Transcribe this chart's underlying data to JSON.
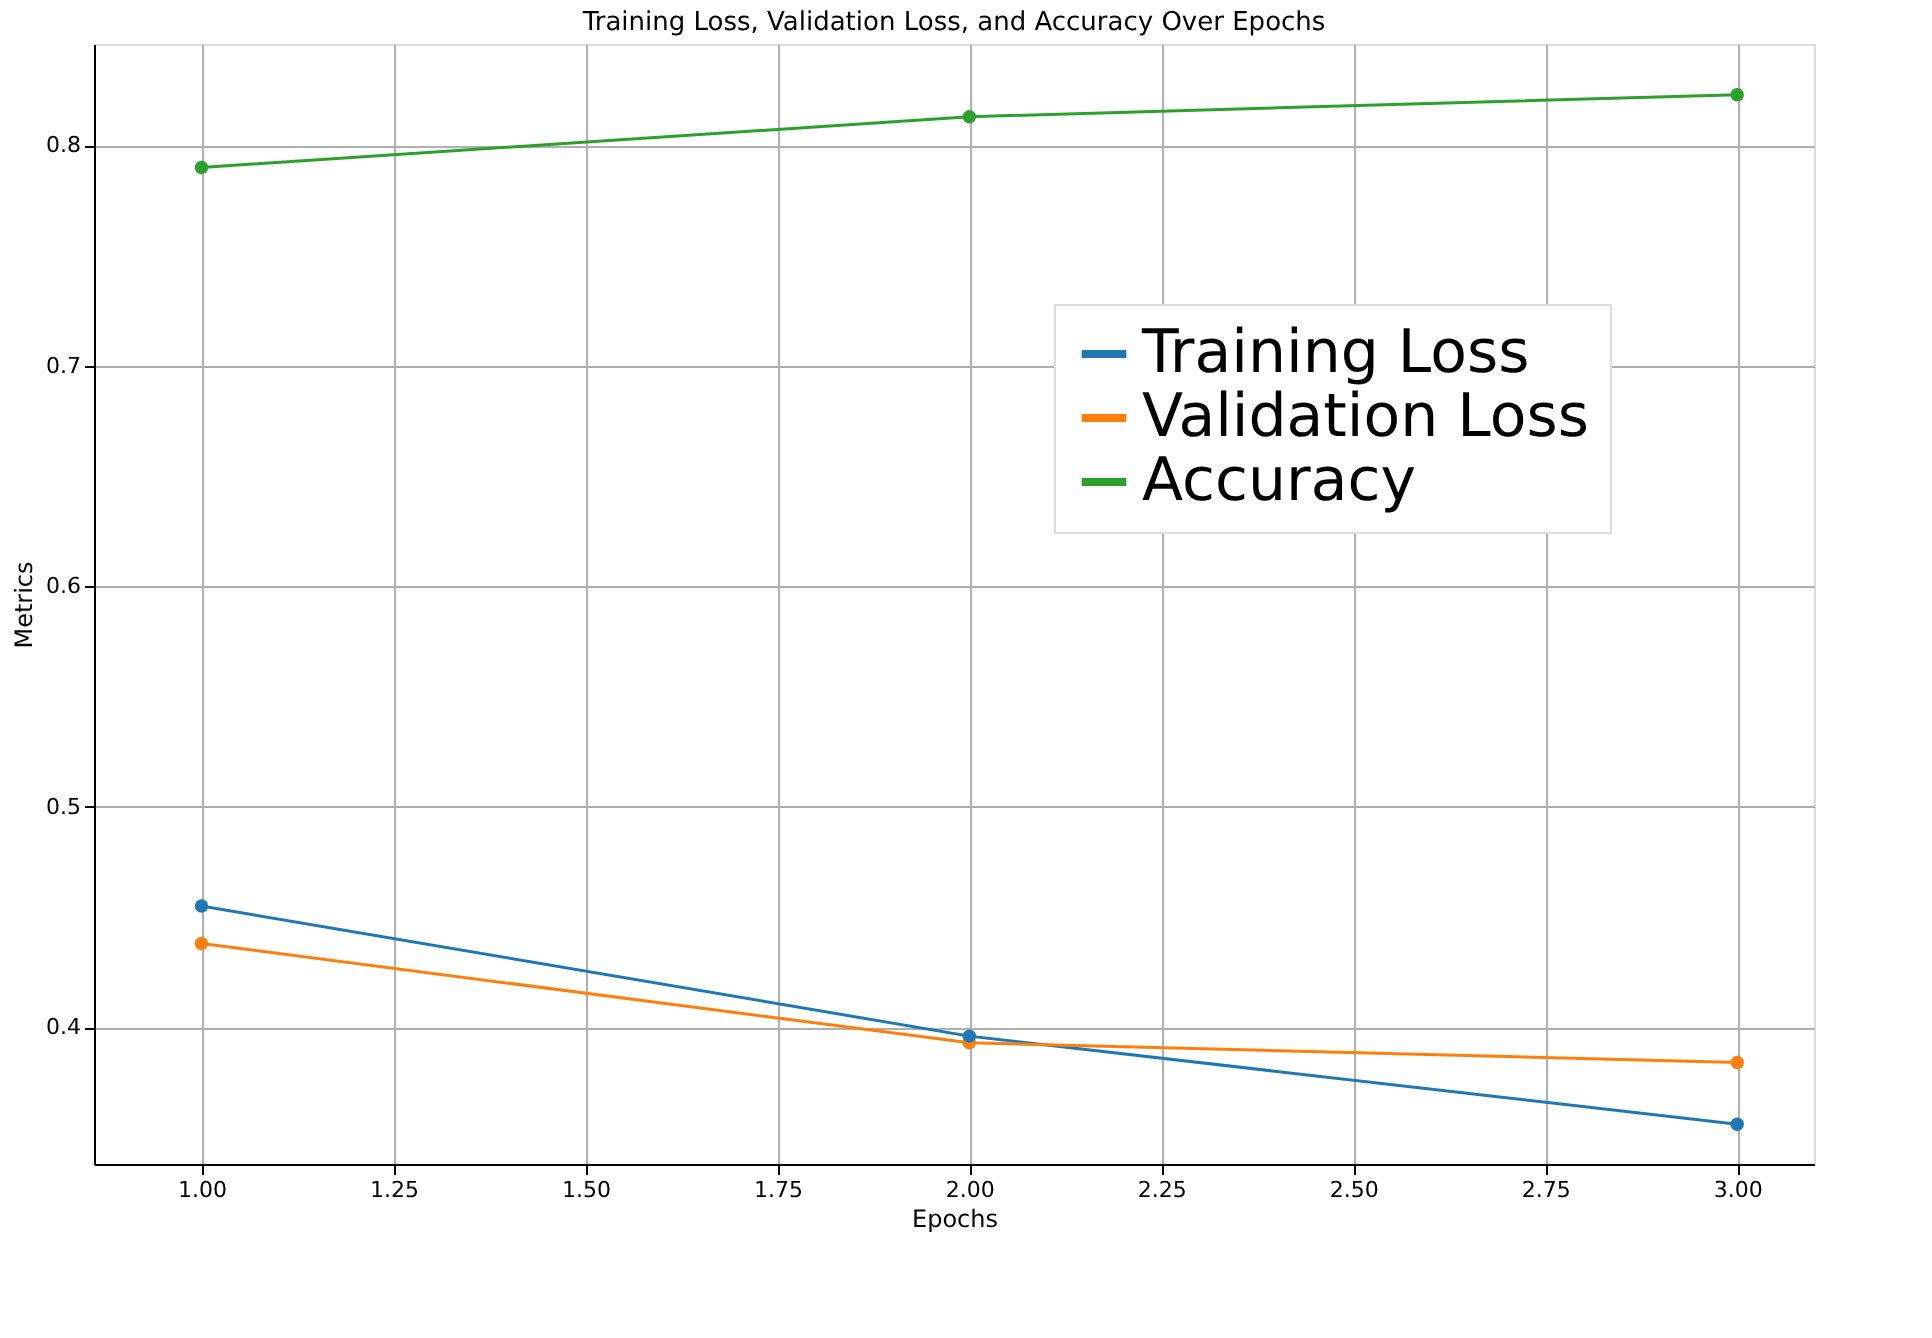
{
  "chart_data": {
    "type": "line",
    "title": "Training Loss, Validation Loss, and Accuracy Over Epochs",
    "xlabel": "Epochs",
    "ylabel": "Metrics",
    "x": [
      1,
      2,
      3
    ],
    "series": [
      {
        "name": "Training Loss",
        "color": "#1f77b4",
        "values": [
          0.455,
          0.396,
          0.356
        ]
      },
      {
        "name": "Validation Loss",
        "color": "#ff7f0e",
        "values": [
          0.438,
          0.393,
          0.384
        ]
      },
      {
        "name": "Accuracy",
        "color": "#2ca02c",
        "values": [
          0.79,
          0.813,
          0.823
        ]
      }
    ],
    "xlim": [
      0.86,
      3.1
    ],
    "xticks": [
      {
        "value": 1,
        "label": "1.00"
      },
      {
        "value": 1.25,
        "label": "1.25"
      },
      {
        "value": 1.5,
        "label": "1.50"
      },
      {
        "value": 1.75,
        "label": "1.75"
      },
      {
        "value": 2,
        "label": "2.00"
      },
      {
        "value": 2.25,
        "label": "2.25"
      },
      {
        "value": 2.5,
        "label": "2.50"
      },
      {
        "value": 2.75,
        "label": "2.75"
      },
      {
        "value": 3,
        "label": "3.00"
      }
    ],
    "ylim": [
      0.338,
      0.846
    ],
    "yticks": [
      0.4,
      0.5,
      0.6,
      0.7,
      0.8
    ],
    "grid": true,
    "legend": "center right",
    "marker": "circle",
    "line_style": "solid"
  }
}
